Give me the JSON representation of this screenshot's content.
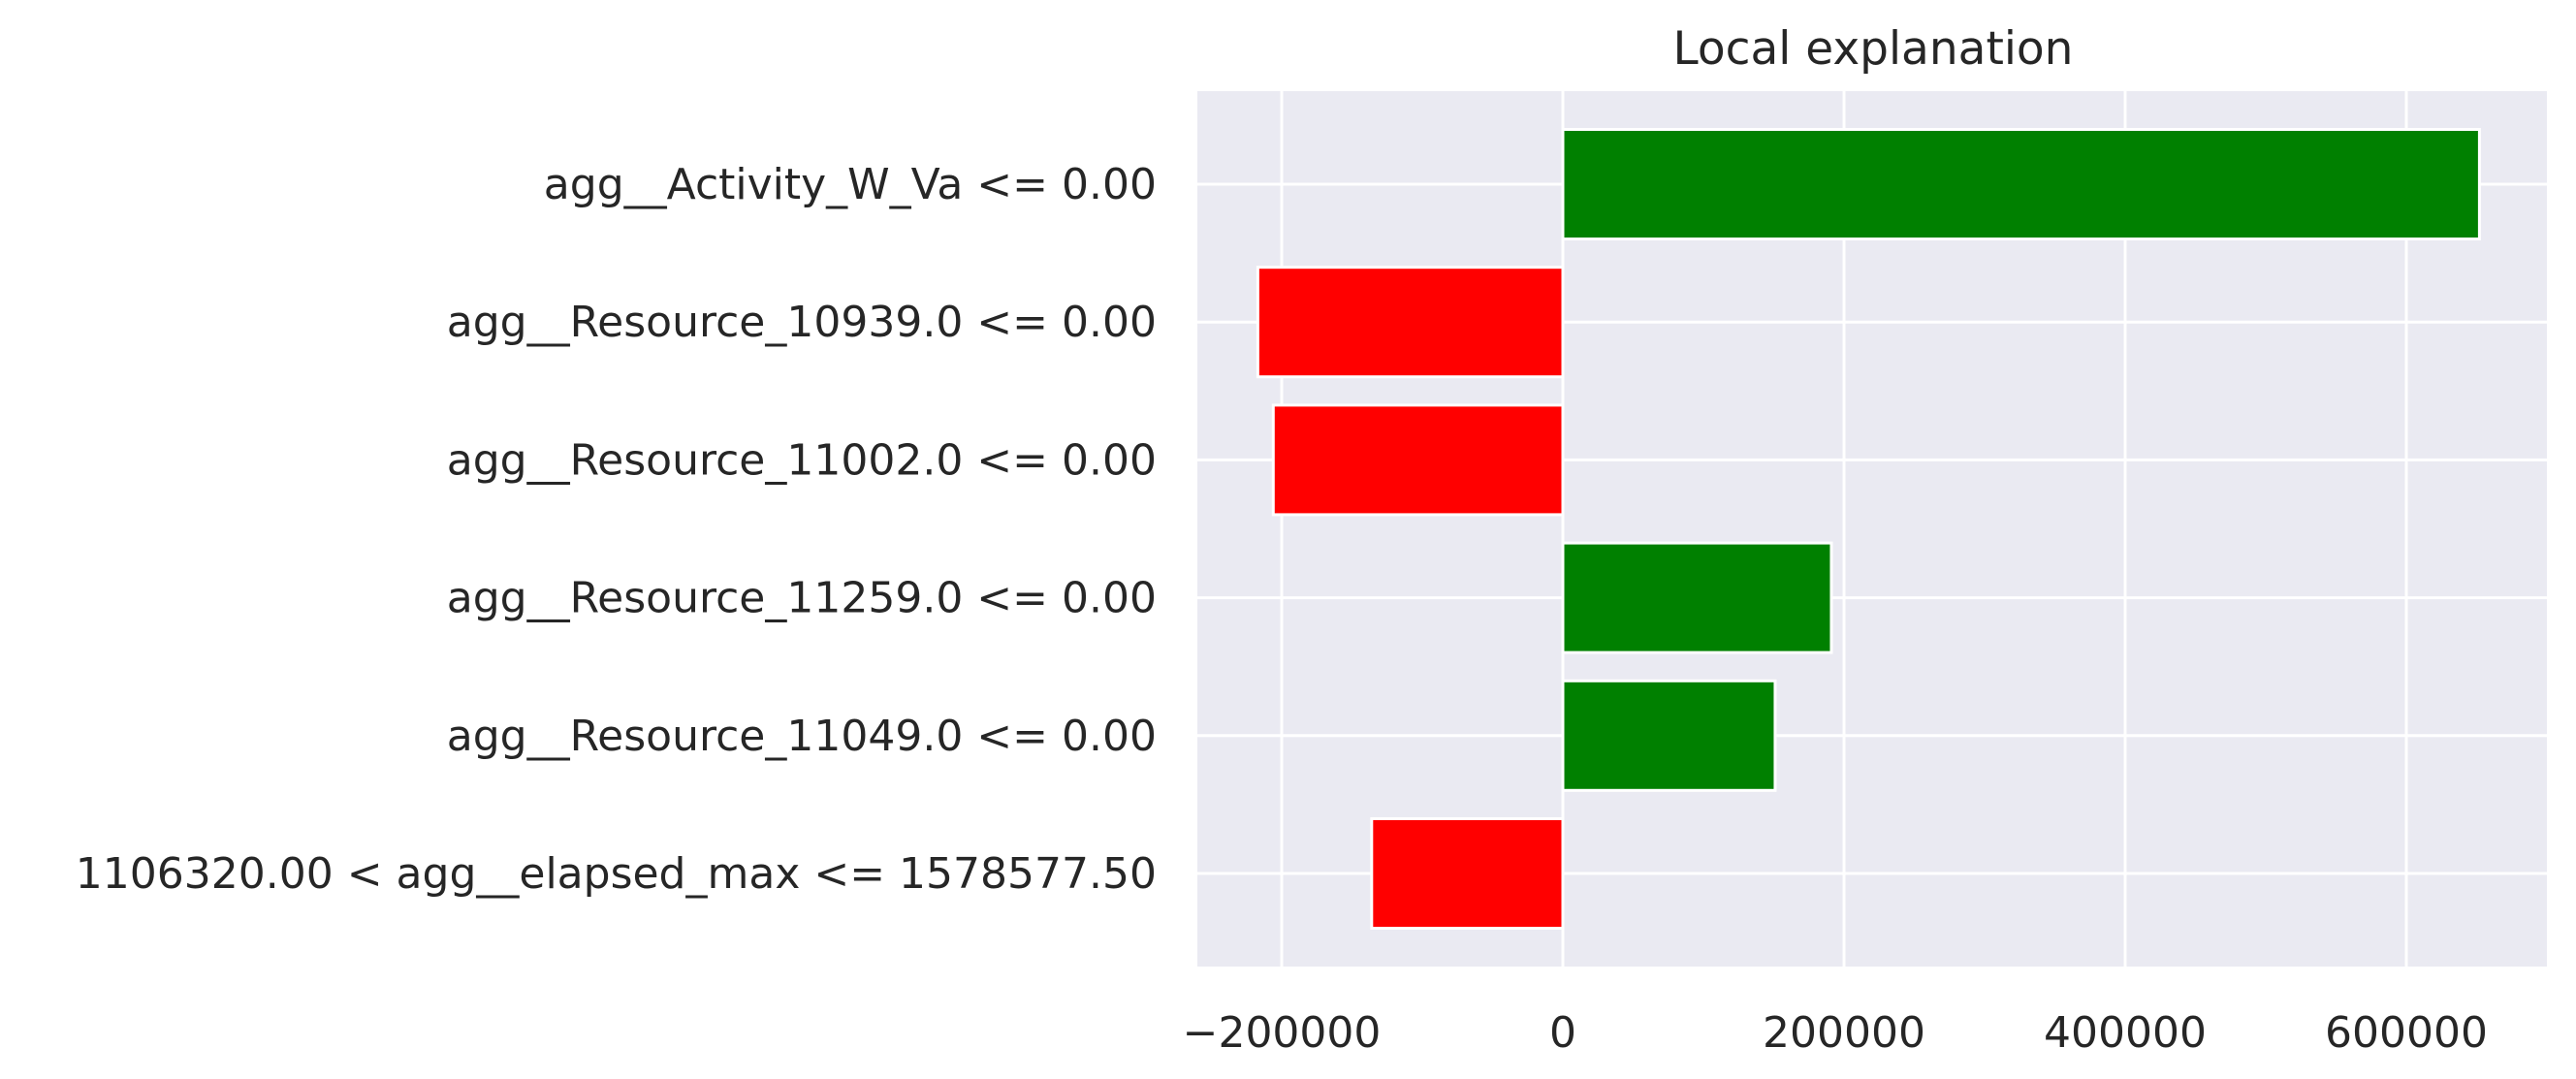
{
  "chart_data": {
    "type": "bar",
    "orientation": "horizontal",
    "title": "Local explanation",
    "xlabel": "",
    "ylabel": "",
    "xlim": [
      -260000,
      700000
    ],
    "grid": true,
    "x_ticks": [
      {
        "value": -200000,
        "label": "−200000"
      },
      {
        "value": 0,
        "label": "0"
      },
      {
        "value": 200000,
        "label": "200000"
      },
      {
        "value": 400000,
        "label": "400000"
      },
      {
        "value": 600000,
        "label": "600000"
      }
    ],
    "categories": [
      "agg__Activity_W_Va <= 0.00",
      "agg__Resource_10939.0 <= 0.00",
      "agg__Resource_11002.0 <= 0.00",
      "agg__Resource_11259.0 <= 0.00",
      "agg__Resource_11049.0 <= 0.00",
      "1106320.00 < agg__elapsed_max <= 1578577.50"
    ],
    "values": [
      652000,
      -217000,
      -206000,
      191000,
      151000,
      -136000
    ],
    "colors": {
      "positive": "#008000",
      "negative": "#ff0000",
      "background": "#eaeaf2",
      "grid": "#ffffff",
      "text": "#262626"
    }
  }
}
